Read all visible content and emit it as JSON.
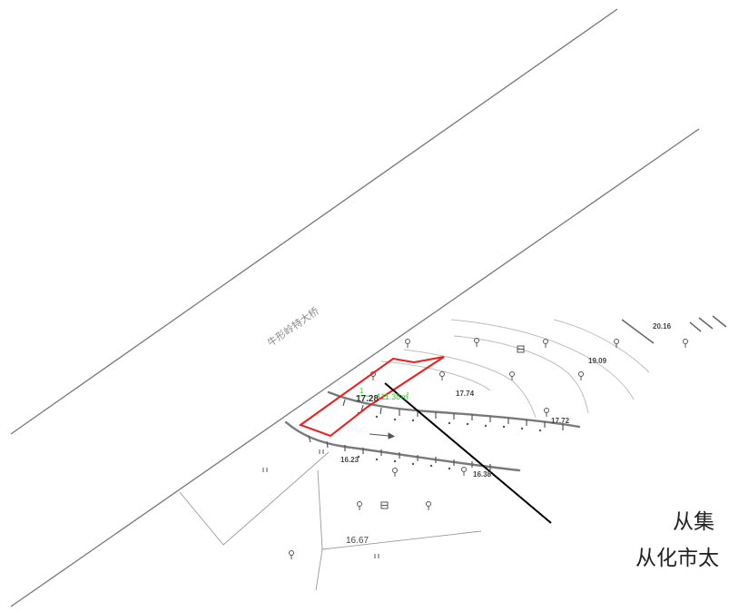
{
  "map": {
    "road_name": "牛形岭特大桥",
    "parcel": {
      "id_label": "1",
      "area_label": "111.38㎡"
    },
    "elevations": [
      {
        "label": "20.16"
      },
      {
        "label": "19.09"
      },
      {
        "label": "17.74"
      },
      {
        "label": "17.72"
      },
      {
        "label": "17.28"
      },
      {
        "label": "16.23"
      },
      {
        "label": "16.38"
      },
      {
        "label": "16.67"
      }
    ],
    "colors": {
      "parcel_outline": "#ee1c1c",
      "annotation": "#33cc33",
      "road_line": "#777777",
      "contour": "#bdbdbd"
    }
  },
  "captions": {
    "line1": "从集",
    "line2": "从化市太"
  }
}
